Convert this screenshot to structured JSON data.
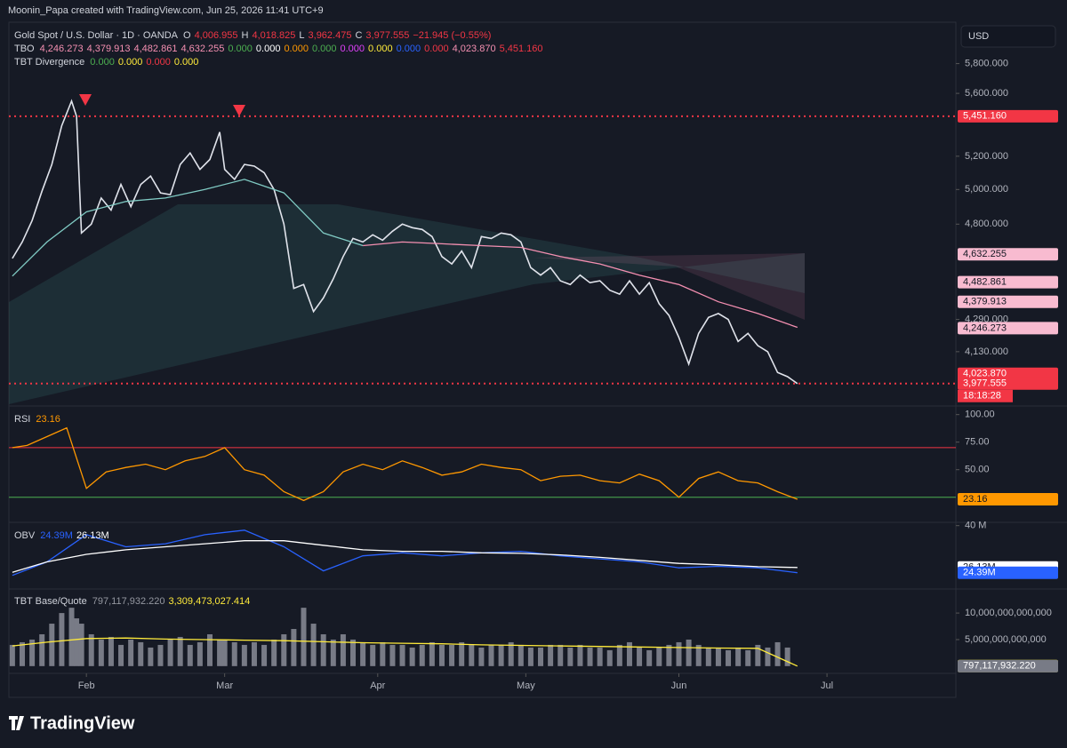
{
  "header": {
    "credit": "Moonin_Papa created with TradingView.com, Jun 25, 2026 11:41 UTC+9",
    "currency": "USD",
    "logo": "TradingView"
  },
  "chart_data": [
    {
      "type": "line",
      "log": true,
      "xlim": [
        16.3,
        208.1
      ],
      "xticks": [
        {
          "value": 32,
          "label": "Feb"
        },
        {
          "value": 60,
          "label": "Mar"
        },
        {
          "value": 91,
          "label": "Apr"
        },
        {
          "value": 121,
          "label": "May"
        },
        {
          "value": 152,
          "label": "Jun"
        },
        {
          "value": 182,
          "label": "Jul"
        }
      ],
      "ylim": [
        3882,
        6090
      ],
      "yticks": [
        {
          "value": 5800,
          "label": "5,800.000"
        },
        {
          "value": 5600,
          "label": "5,600.000"
        },
        {
          "value": 5200,
          "label": "5,200.000"
        },
        {
          "value": 5000,
          "label": "5,000.000"
        },
        {
          "value": 4800,
          "label": "4,800.000"
        },
        {
          "value": 4290,
          "label": "4,290.000"
        },
        {
          "value": 4130,
          "label": "4,130.000"
        }
      ],
      "legend": [
        [
          {
            "text": "Gold Spot / U.S. Dollar · 1D · OANDA",
            "color": "#d1d4dc"
          },
          {
            "text": "O",
            "color": "#d1d4dc"
          },
          {
            "text": "4,006.955",
            "color": "#f23645"
          },
          {
            "text": "H",
            "color": "#d1d4dc"
          },
          {
            "text": "4,018.825",
            "color": "#f23645"
          },
          {
            "text": "L",
            "color": "#d1d4dc"
          },
          {
            "text": "3,962.475",
            "color": "#f23645"
          },
          {
            "text": "C",
            "color": "#d1d4dc"
          },
          {
            "text": "3,977.555",
            "color": "#f23645"
          },
          {
            "text": "−21.945 (−0.55%)",
            "color": "#f23645"
          }
        ],
        [
          {
            "text": "TBO",
            "color": "#d1d4dc"
          },
          {
            "text": "4,246.273",
            "color": "#f48fb1"
          },
          {
            "text": "4,379.913",
            "color": "#f48fb1"
          },
          {
            "text": "4,482.861",
            "color": "#f48fb1"
          },
          {
            "text": "4,632.255",
            "color": "#f48fb1"
          },
          {
            "text": "0.000",
            "color": "#4caf50"
          },
          {
            "text": "0.000",
            "color": "#ffffff"
          },
          {
            "text": "0.000",
            "color": "#ff9800"
          },
          {
            "text": "0.000",
            "color": "#4caf50"
          },
          {
            "text": "0.000",
            "color": "#e040fb"
          },
          {
            "text": "0.000",
            "color": "#ffeb3b"
          },
          {
            "text": "0.000",
            "color": "#2962ff"
          },
          {
            "text": "0.000",
            "color": "#f23645"
          },
          {
            "text": "4,023.870",
            "color": "#f48fb1"
          },
          {
            "text": "5,451.160",
            "color": "#f23645"
          }
        ],
        [
          {
            "text": "TBT Divergence",
            "color": "#d1d4dc"
          },
          {
            "text": "0.000",
            "color": "#4caf50"
          },
          {
            "text": "0.000",
            "color": "#ffeb3b"
          },
          {
            "text": "0.000",
            "color": "#f23645"
          },
          {
            "text": "0.000",
            "color": "#ffeb3b"
          }
        ]
      ],
      "x": [
        17,
        19,
        21,
        23,
        25,
        27,
        29,
        30,
        31,
        33,
        35,
        37,
        39,
        41,
        43,
        45,
        47,
        49,
        51,
        53,
        55,
        57,
        59,
        60,
        62,
        64,
        66,
        68,
        70,
        72,
        74,
        76,
        78,
        80,
        82,
        84,
        86,
        88,
        90,
        92,
        94,
        96,
        98,
        100,
        102,
        104,
        106,
        108,
        110,
        112,
        114,
        116,
        118,
        120,
        122,
        124,
        126,
        128,
        130,
        132,
        134,
        136,
        138,
        140,
        142,
        144,
        146,
        148,
        150,
        152,
        154,
        156,
        158,
        160,
        162,
        164,
        166,
        168,
        170,
        172,
        174,
        176
      ],
      "series": [
        {
          "color": "#e0e3eb",
          "values": [
            4610,
            4700,
            4820,
            4990,
            5150,
            5390,
            5550,
            5450,
            4750,
            4800,
            4950,
            4880,
            5030,
            4900,
            5030,
            5080,
            4980,
            4970,
            5150,
            5220,
            5120,
            5180,
            5350,
            5120,
            5060,
            5150,
            5140,
            5100,
            5000,
            4800,
            4450,
            4470,
            4330,
            4400,
            4500,
            4620,
            4720,
            4700,
            4740,
            4710,
            4760,
            4800,
            4780,
            4770,
            4730,
            4620,
            4580,
            4650,
            4560,
            4730,
            4720,
            4750,
            4740,
            4700,
            4560,
            4520,
            4560,
            4490,
            4470,
            4520,
            4480,
            4490,
            4440,
            4420,
            4490,
            4420,
            4480,
            4370,
            4310,
            4200,
            4070,
            4220,
            4300,
            4320,
            4290,
            4180,
            4220,
            4160,
            4130,
            4030,
            4010,
            3977.555
          ]
        },
        {
          "color": "#80cbc4",
          "x": [
            17,
            24,
            32,
            40,
            48,
            56,
            64,
            72,
            80,
            88
          ],
          "values": [
            4515,
            4700,
            4870,
            4930,
            4950,
            5000,
            5060,
            4980,
            4750,
            4680
          ]
        },
        {
          "color": "#f48fb1",
          "x": [
            88,
            96,
            104,
            112,
            120,
            128,
            136,
            144,
            152,
            160,
            168,
            176
          ],
          "values": [
            4680,
            4700,
            4690,
            4680,
            4670,
            4620,
            4580,
            4520,
            4470,
            4380,
            4320,
            4250
          ]
        }
      ],
      "price_labels": [
        {
          "value": 5451.16,
          "label": "5,451.160",
          "color": "#f23645",
          "dotted": true
        },
        {
          "value": 4632.255,
          "label": "4,632.255",
          "color": "#f8bbd0"
        },
        {
          "value": 4482.861,
          "label": "4,482.861",
          "color": "#f8bbd0"
        },
        {
          "value": 4379.913,
          "label": "4,379.913",
          "color": "#f8bbd0"
        },
        {
          "value": 4246.273,
          "label": "4,246.273",
          "color": "#f8bbd0"
        },
        {
          "value": 4023.87,
          "label": "4,023.870",
          "color": "#f23645"
        },
        {
          "value": 3977.555,
          "label": "3,977.555",
          "color": "#f23645",
          "dotted": true
        }
      ],
      "countdown": "18:18:28"
    },
    {
      "type": "line",
      "ylim": [
        3,
        107
      ],
      "yticks": [
        {
          "value": 100,
          "label": "100.00"
        },
        {
          "value": 75,
          "label": "75.00"
        },
        {
          "value": 50,
          "label": "50.00"
        }
      ],
      "legend": [
        [
          {
            "text": "RSI",
            "color": "#d1d4dc"
          },
          {
            "text": "23.16",
            "color": "#ff9800"
          }
        ]
      ],
      "levels": [
        {
          "value": 70,
          "color": "#f23645"
        },
        {
          "value": 25,
          "color": "#4caf50"
        }
      ],
      "x": [
        17,
        20,
        24,
        28,
        32,
        36,
        40,
        44,
        48,
        52,
        56,
        60,
        64,
        68,
        72,
        76,
        80,
        84,
        88,
        92,
        96,
        100,
        104,
        108,
        112,
        116,
        120,
        124,
        128,
        132,
        136,
        140,
        144,
        148,
        152,
        156,
        160,
        164,
        168,
        172,
        176
      ],
      "series": [
        {
          "color": "#ff9800",
          "values": [
            70,
            72,
            80,
            88,
            33,
            48,
            52,
            55,
            50,
            58,
            62,
            70,
            50,
            45,
            30,
            22,
            30,
            48,
            55,
            50,
            58,
            52,
            45,
            48,
            55,
            52,
            50,
            40,
            44,
            45,
            40,
            38,
            46,
            40,
            25,
            42,
            48,
            40,
            38,
            30,
            23.16
          ]
        }
      ],
      "price_labels": [
        {
          "value": 23.16,
          "label": "23.16",
          "color": "#ff9800"
        }
      ]
    },
    {
      "type": "line",
      "ylim": [
        19.3,
        40.5
      ],
      "yticks": [
        {
          "value": 40,
          "label": "40 M"
        }
      ],
      "legend": [
        [
          {
            "text": "OBV",
            "color": "#d1d4dc"
          },
          {
            "text": "24.39M",
            "color": "#2962ff"
          },
          {
            "text": "26.13M",
            "color": "#ffffff"
          }
        ]
      ],
      "x": [
        17,
        24,
        32,
        40,
        48,
        56,
        64,
        72,
        80,
        88,
        96,
        104,
        112,
        120,
        128,
        136,
        144,
        152,
        160,
        168,
        176
      ],
      "series": [
        {
          "color": "#2962ff",
          "values": [
            23.5,
            28,
            37,
            33,
            34,
            37,
            38.5,
            33,
            25,
            30,
            31,
            30,
            31,
            31.5,
            30,
            29,
            28,
            26,
            26.5,
            26,
            24.39
          ]
        },
        {
          "color": "#ffffff",
          "values": [
            24.5,
            28,
            30.5,
            32,
            33,
            34,
            35,
            35,
            33.5,
            32,
            31.5,
            31.5,
            31,
            30.8,
            30.3,
            29.5,
            28.5,
            27.5,
            27,
            26.4,
            26.13
          ]
        }
      ],
      "price_labels": [
        {
          "value": 26.13,
          "label": "26.13M",
          "color": "#ffffff"
        },
        {
          "value": 24.39,
          "label": "24.39M",
          "color": "#2962ff"
        }
      ]
    },
    {
      "type": "line",
      "ylim": [
        -1200000000000.0,
        14200000000000.0
      ],
      "yticks": [
        {
          "value": 10000000000000.0,
          "label": "10,000,000,000,000"
        },
        {
          "value": 5000000000000.0,
          "label": "5,000,000,000,000"
        }
      ],
      "legend": [
        [
          {
            "text": "TBT Base/Quote",
            "color": "#d1d4dc"
          },
          {
            "text": "797,117,932.220",
            "color": "#9598a1"
          },
          {
            "text": "3,309,473,027.414",
            "color": "#ffeb3b"
          }
        ]
      ],
      "x": [
        17,
        19,
        21,
        23,
        25,
        27,
        29,
        30,
        31,
        33,
        35,
        37,
        39,
        41,
        43,
        45,
        47,
        49,
        51,
        53,
        55,
        57,
        59,
        60,
        62,
        64,
        66,
        68,
        70,
        72,
        74,
        76,
        78,
        80,
        82,
        84,
        86,
        88,
        90,
        92,
        94,
        96,
        98,
        100,
        102,
        104,
        106,
        108,
        110,
        112,
        114,
        116,
        118,
        120,
        122,
        124,
        126,
        128,
        130,
        132,
        134,
        136,
        138,
        140,
        142,
        144,
        146,
        148,
        150,
        152,
        154,
        156,
        158,
        160,
        162,
        164,
        166,
        168,
        170,
        172,
        174,
        176
      ],
      "series": [
        {
          "style": "bar",
          "color": "#787b86",
          "values": [
            4000000000000.0,
            4500000000000.0,
            5000000000000.0,
            6000000000000.0,
            8000000000000.0,
            10000000000000.0,
            11000000000000.0,
            9000000000000.0,
            8000000000000.0,
            6000000000000.0,
            5000000000000.0,
            5500000000000.0,
            4000000000000.0,
            5000000000000.0,
            4500000000000.0,
            3500000000000.0,
            4000000000000.0,
            5000000000000.0,
            5500000000000.0,
            4000000000000.0,
            4500000000000.0,
            6000000000000.0,
            5000000000000.0,
            5000000000000.0,
            4500000000000.0,
            4000000000000.0,
            4500000000000.0,
            4000000000000.0,
            5000000000000.0,
            6000000000000.0,
            7000000000000.0,
            11000000000000.0,
            8000000000000.0,
            6000000000000.0,
            5000000000000.0,
            6000000000000.0,
            5000000000000.0,
            4500000000000.0,
            4000000000000.0,
            4500000000000.0,
            4000000000000.0,
            4000000000000.0,
            3500000000000.0,
            4000000000000.0,
            4500000000000.0,
            4000000000000.0,
            4000000000000.0,
            4500000000000.0,
            4000000000000.0,
            3500000000000.0,
            4000000000000.0,
            4000000000000.0,
            4500000000000.0,
            4000000000000.0,
            3500000000000.0,
            3500000000000.0,
            4000000000000.0,
            4000000000000.0,
            3500000000000.0,
            4000000000000.0,
            3500000000000.0,
            3500000000000.0,
            3000000000000.0,
            4000000000000.0,
            4500000000000.0,
            3500000000000.0,
            3000000000000.0,
            3500000000000.0,
            4000000000000.0,
            4500000000000.0,
            5000000000000.0,
            4000000000000.0,
            3500000000000.0,
            3500000000000.0,
            3000000000000.0,
            3500000000000.0,
            3000000000000.0,
            4000000000000.0,
            3500000000000.0,
            4500000000000.0,
            3500000000000.0,
            797117932.22
          ]
        },
        {
          "color": "#ffeb3b",
          "x": [
            17,
            24,
            32,
            40,
            48,
            56,
            64,
            72,
            80,
            88,
            96,
            104,
            112,
            120,
            128,
            136,
            144,
            152,
            160,
            168,
            176
          ],
          "values": [
            3800000000000.0,
            4500000000000.0,
            5200000000000.0,
            5300000000000.0,
            5100000000000.0,
            5000000000000.0,
            4900000000000.0,
            4800000000000.0,
            4600000000000.0,
            4400000000000.0,
            4300000000000.0,
            4200000000000.0,
            4000000000000.0,
            3900000000000.0,
            3800000000000.0,
            3700000000000.0,
            3600000000000.0,
            3500000000000.0,
            3400000000000.0,
            3350000000000.0,
            3309473027.414
          ]
        }
      ],
      "price_labels": [
        {
          "value": 3309473027.414,
          "label": "3,309,473,027.414",
          "color": "#ffeb3b"
        },
        {
          "value": 797117932.22,
          "label": "797,117,932.220",
          "color": "#787b86"
        }
      ]
    }
  ]
}
